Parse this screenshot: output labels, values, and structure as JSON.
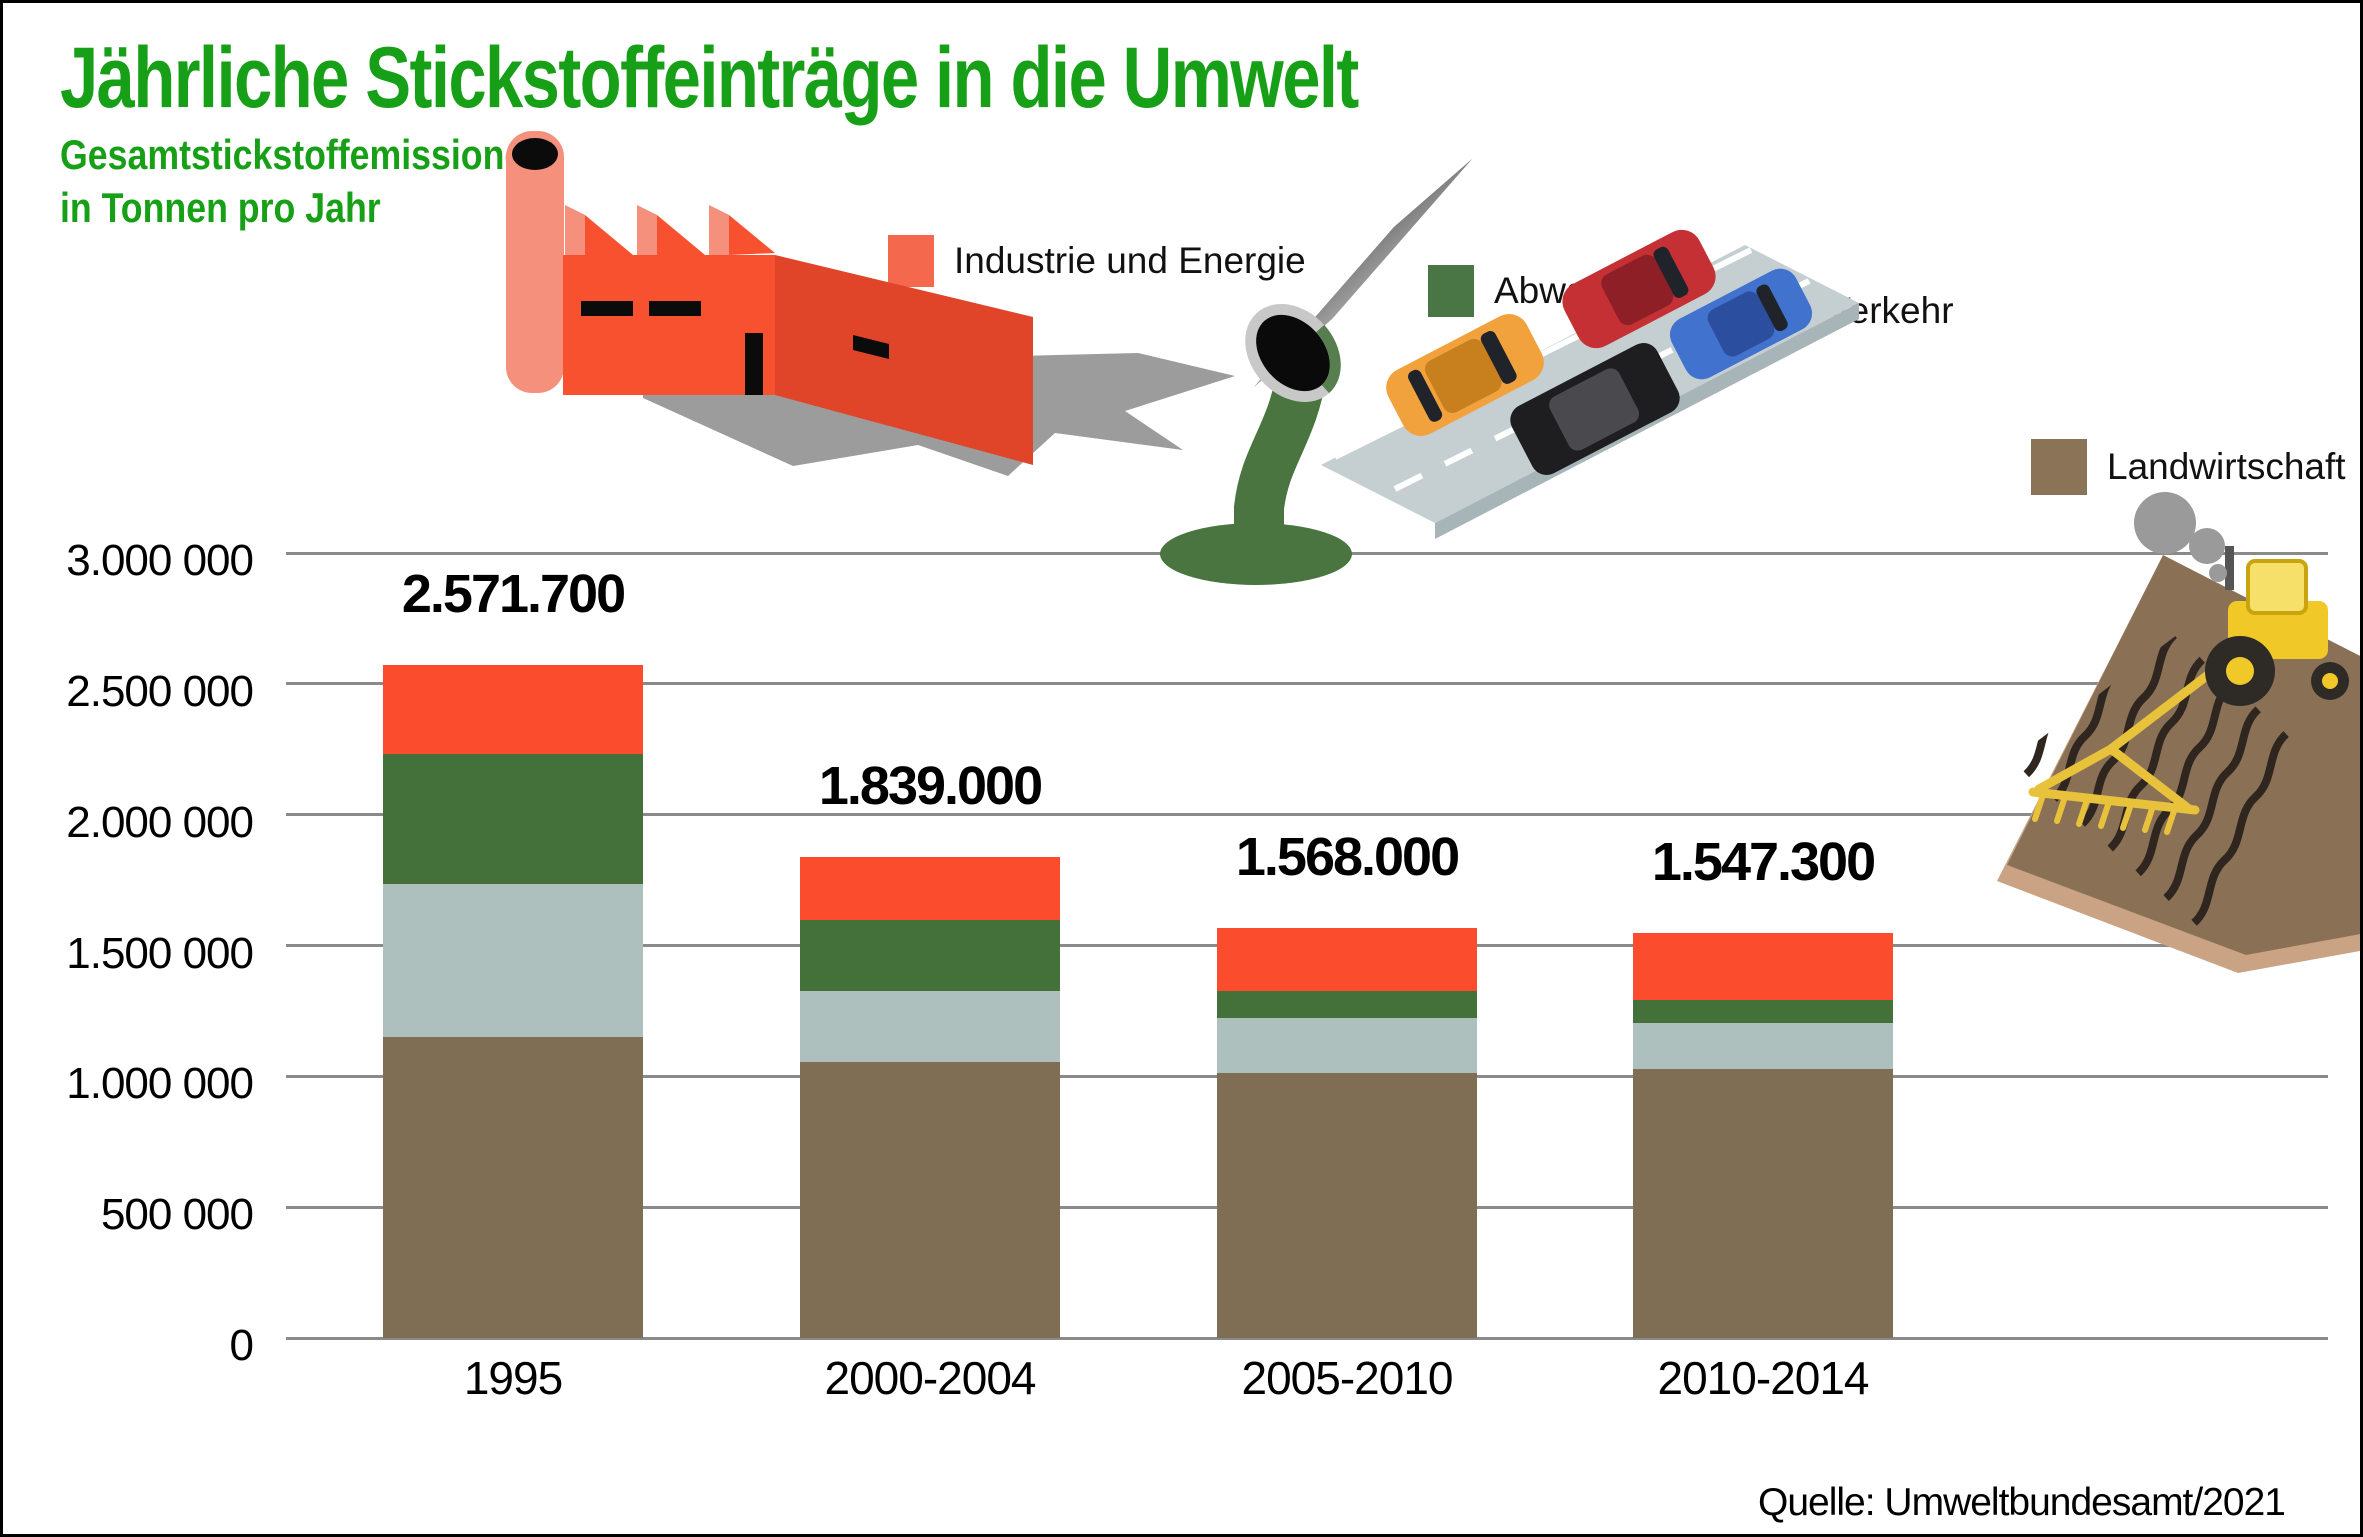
{
  "header": {
    "title": "Jährliche Stickstoffeinträge in die Umwelt",
    "subtitle_line1": "Gesamtstickstoffemissionen",
    "subtitle_line2": "in Tonnen pro Jahr"
  },
  "source": "Quelle: Umweltbundesamt/2021",
  "colors": {
    "title_green": "#17a017",
    "industrie_energie": "#fb4c2d",
    "abwasser": "#44713a",
    "verkehr": "#aec0bd",
    "landwirtschaft": "#7f6e54",
    "gridline": "#8a8a8a"
  },
  "legend": [
    {
      "label": "Industrie und Energie",
      "color": "#f4684e"
    },
    {
      "label": "Abwasser",
      "color": "#4a7544"
    },
    {
      "label": "Verkehr",
      "color": "#b5c4c2"
    },
    {
      "label": "Landwirtschaft",
      "color": "#8a7356"
    }
  ],
  "illustrations": {
    "industrie": "factory-icon",
    "abwasser": "wastewater-pipe-icon",
    "verkehr": "road-cars-icon",
    "landwirtschaft": "tractor-field-icon"
  },
  "chart_data": {
    "type": "bar",
    "stacked": true,
    "title": "Jährliche Stickstoffeinträge in die Umwelt",
    "ylabel": "Gesamtstickstoffemissionen in Tonnen pro Jahr",
    "categories": [
      "1995",
      "2000-2004",
      "2005-2010",
      "2010-2014"
    ],
    "totals": [
      "2.571.700",
      "1.839.000",
      "1.568.000",
      "1.547.300"
    ],
    "totals_numeric": [
      2571700,
      1839000,
      1568000,
      1547300
    ],
    "series": [
      {
        "name": "Industrie und Energie",
        "color": "#fb4c2d",
        "values": [
          340700,
          241000,
          241000,
          255300
        ]
      },
      {
        "name": "Abwasser",
        "color": "#44713a",
        "values": [
          497000,
          272000,
          104000,
          88000
        ]
      },
      {
        "name": "Verkehr",
        "color": "#aec0bd",
        "values": [
          582000,
          271000,
          210000,
          176000
        ]
      },
      {
        "name": "Landwirtschaft",
        "color": "#7f6e54",
        "values": [
          1152000,
          1055000,
          1013000,
          1028000
        ]
      }
    ],
    "ylim": [
      0,
      3000000
    ],
    "ytick_values": [
      3000000,
      2500000,
      2000000,
      1500000,
      1000000,
      500000,
      0
    ],
    "ytick_labels": [
      "3.000 000",
      "2.500 000",
      "2.000 000",
      "1.500 000",
      "1.000 000",
      "500 000",
      "0"
    ],
    "grid": true,
    "legend_position": "top"
  }
}
